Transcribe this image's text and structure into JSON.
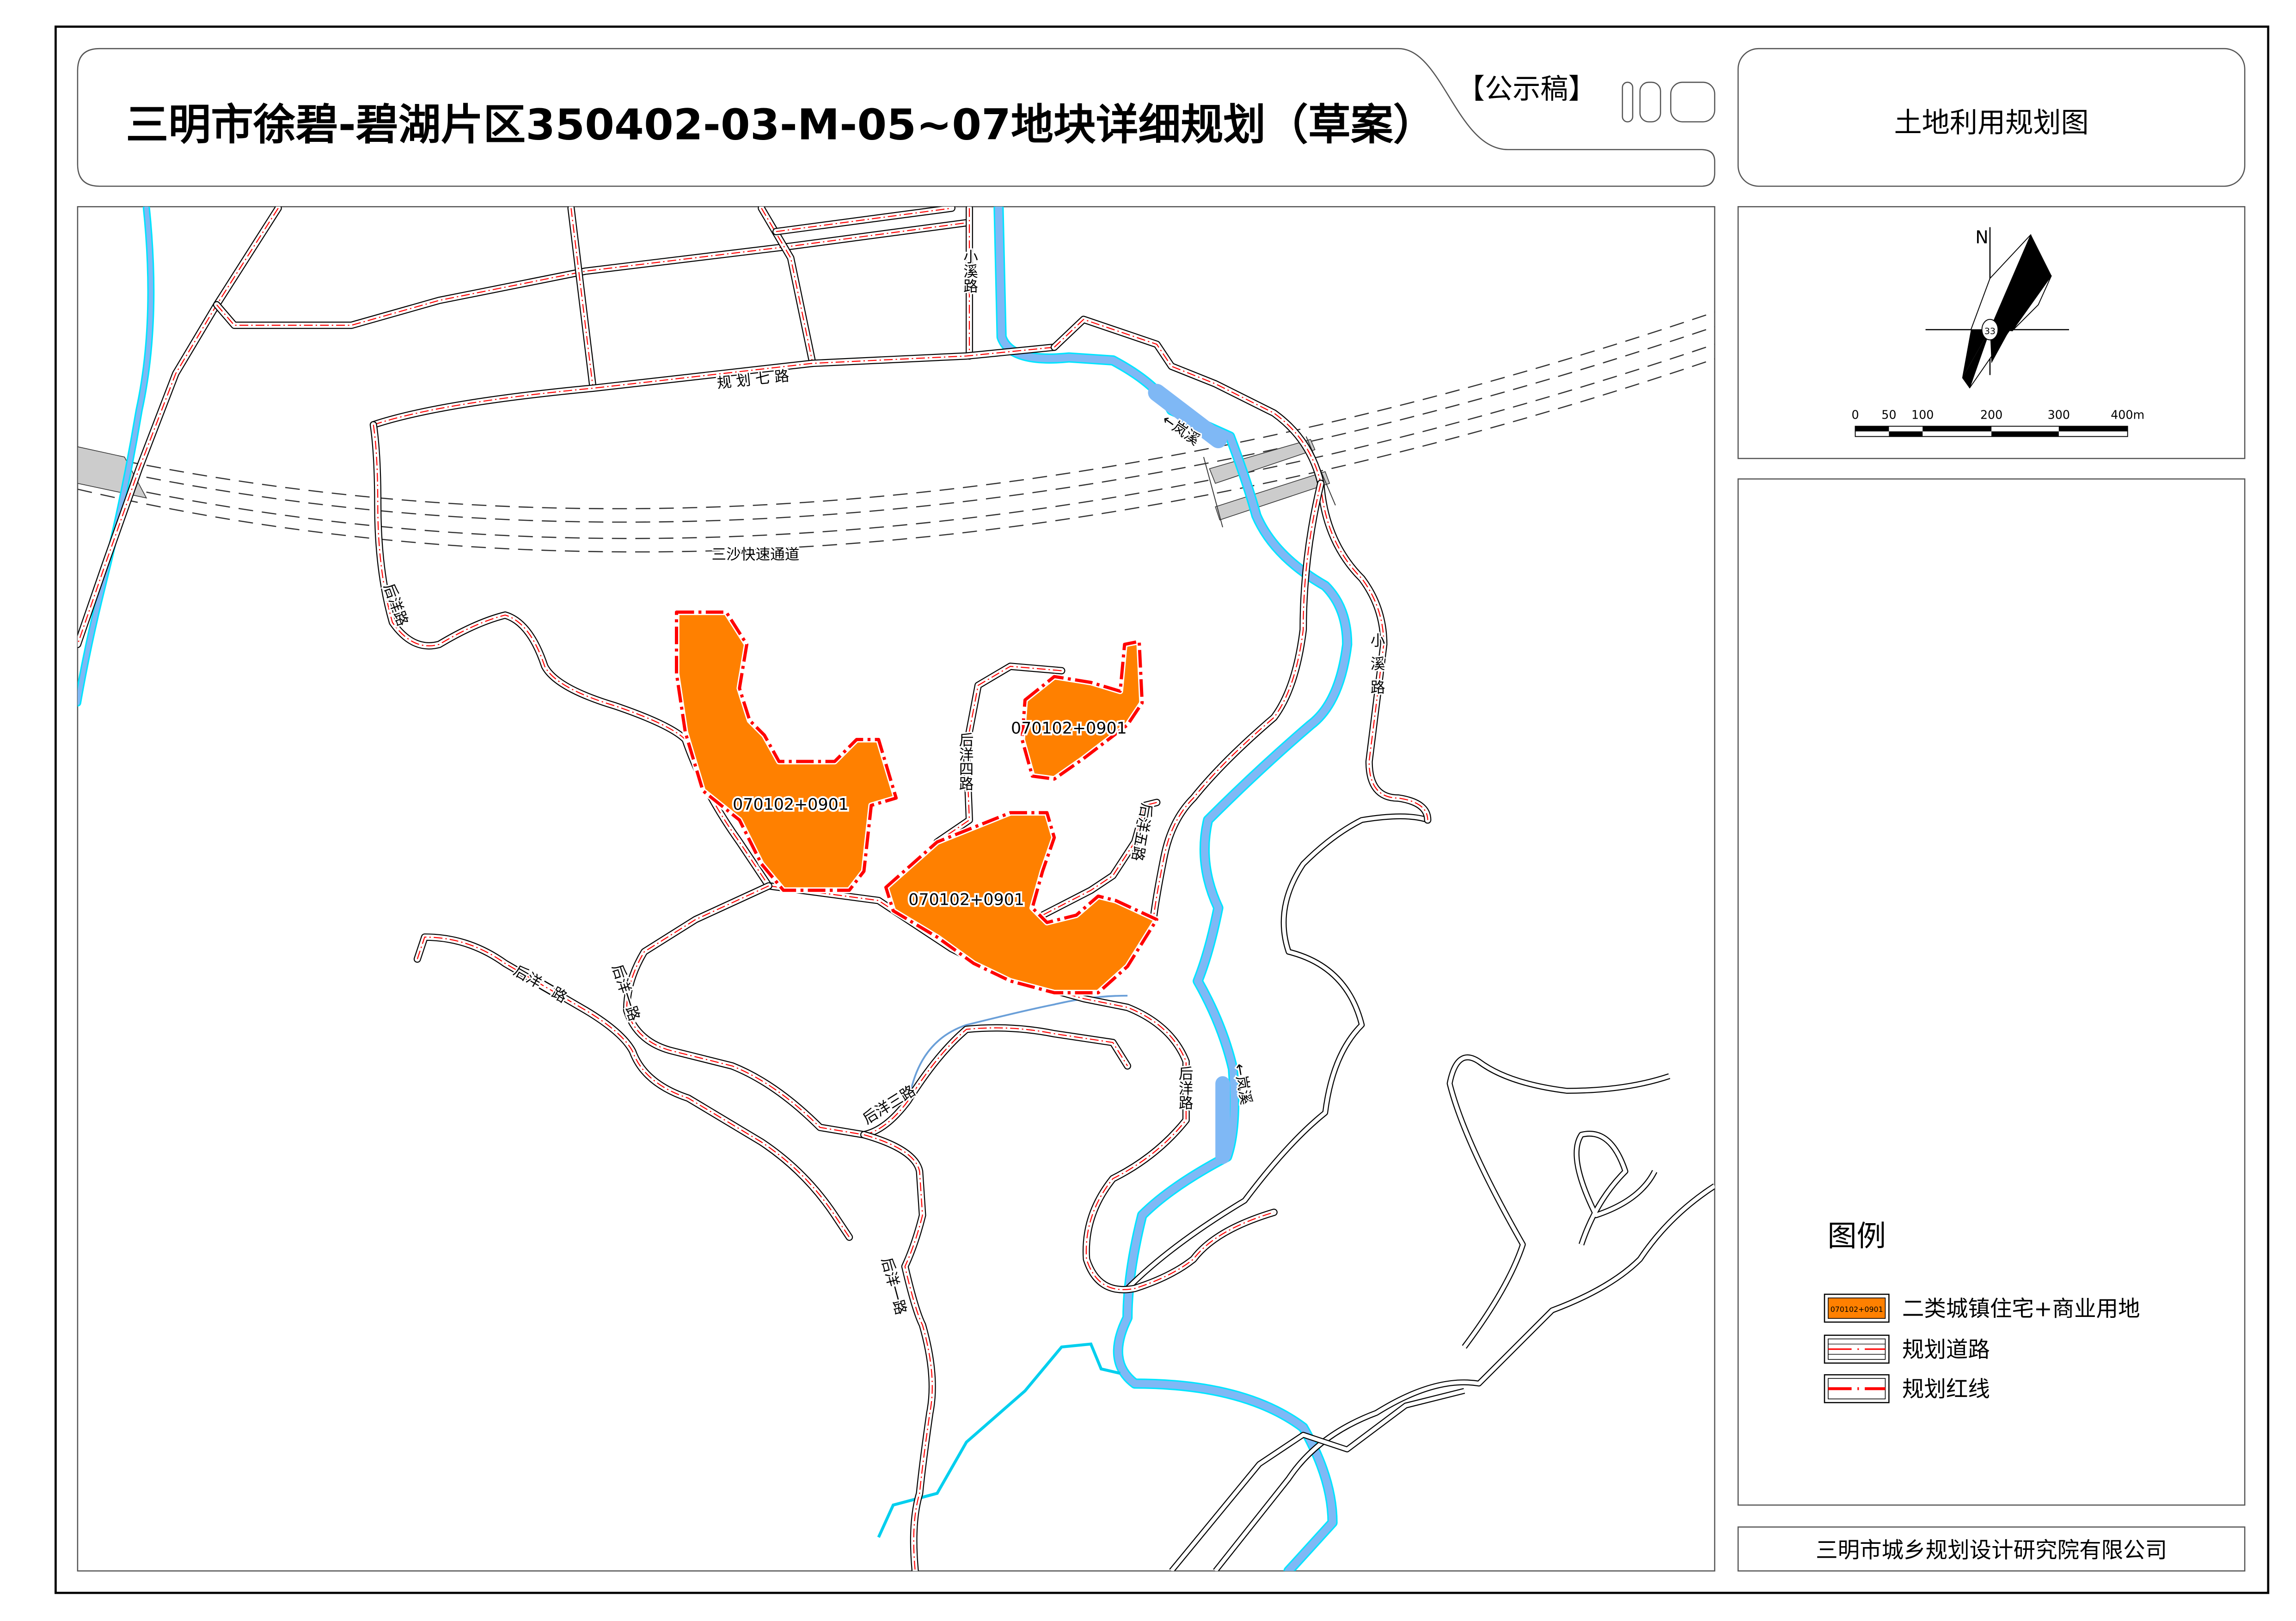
{
  "header": {
    "title": "三明市徐碧-碧湖片区350402-03-M-05~07地块详细规划（草案）",
    "stamp": "【公示稿】",
    "drawing_name": "土地利用规划图"
  },
  "compass": {
    "north_label": "N",
    "center_label": "33"
  },
  "scale_bar": {
    "labels": [
      "0",
      "50",
      "100",
      "200",
      "300",
      "400m"
    ]
  },
  "map": {
    "parcels": [
      {
        "code": "070102+0901"
      },
      {
        "code": "070102+0901"
      },
      {
        "code": "070102+0901"
      }
    ],
    "road_labels": {
      "guihua_qi": "规 划 七 路",
      "xiaoxi_top": "小溪路",
      "xiaoxi_right": "小溪路",
      "sansha": "三沙快速通道",
      "houyang_left": "后洋路",
      "houyang_right": "后洋路",
      "houyang_si": "后洋四路",
      "houyang_wu": "后洋五路",
      "houyang_er": "后洋二路",
      "houyang_yi_mid": "后洋一路",
      "houyang_san": "后洋三路",
      "houyang_yi_bottom": "后洋一路"
    },
    "river_labels": {
      "top": "←岚溪",
      "bottom": "←岚溪"
    },
    "colors": {
      "parcel": "#ff8000",
      "red_line": "#ff0000",
      "river": "#7fb8f5",
      "river_edge": "#00e5ff"
    }
  },
  "legend": {
    "title": "图例",
    "items": [
      {
        "swatch_text": "070102+0901",
        "label": "二类城镇住宅+商业用地"
      },
      {
        "label": "规划道路"
      },
      {
        "label": "规划红线"
      }
    ]
  },
  "footer": {
    "company": "三明市城乡规划设计研究院有限公司"
  }
}
